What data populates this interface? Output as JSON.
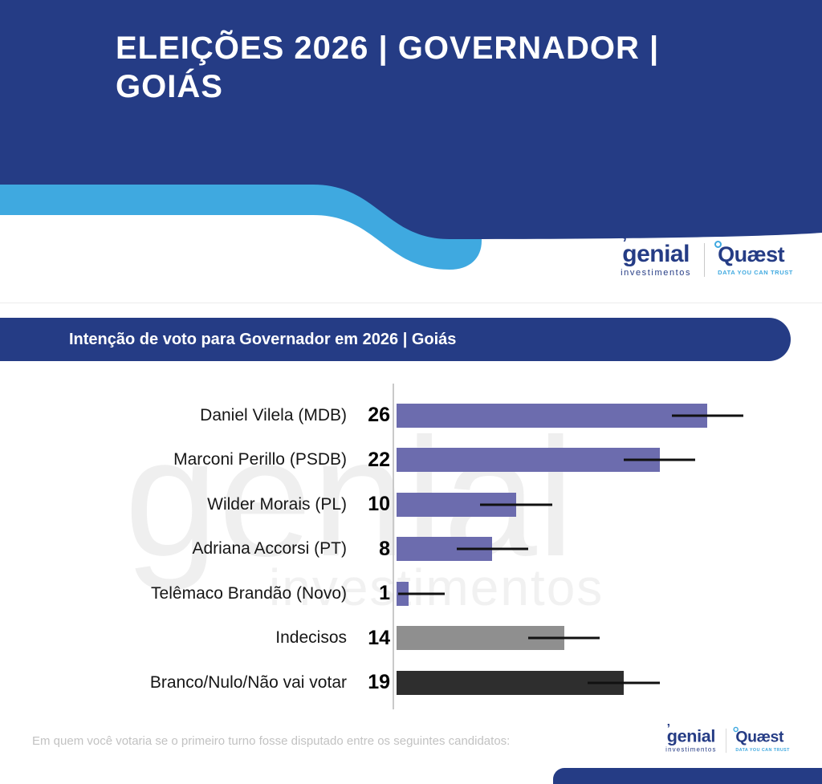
{
  "header": {
    "title": "ELEIÇÕES 2026 | GOVERNADOR | GOIÁS"
  },
  "brand": {
    "genial": "genial",
    "genial_mark": "ʼ",
    "genial_sub": "investimentos",
    "quaest": "Quæst",
    "quaest_tagline": "DATA YOU CAN TRUST"
  },
  "section": {
    "title": "Intenção de voto para Governador em 2026 | Goiás"
  },
  "watermark": {
    "line1": "genial",
    "line2": "investimentos"
  },
  "footer": {
    "question": "Em quem você votaria se o primeiro turno fosse disputado entre os seguintes candidatos:"
  },
  "colors": {
    "navy": "#253C85",
    "light_blue": "#3FA9E0",
    "bar_purple": "#6C6CAE",
    "bar_gray": "#8F8F8F",
    "bar_dark": "#2E2E2E",
    "axis_gray": "#C9C9C9"
  },
  "chart_data": {
    "type": "bar",
    "orientation": "horizontal",
    "title": "Intenção de voto para Governador em 2026 | Goiás",
    "categories": [
      "Daniel Vilela (MDB)",
      "Marconi Perillo (PSDB)",
      "Wilder Morais (PL)",
      "Adriana Accorsi (PT)",
      "Telêmaco Brandão (Novo)",
      "Indecisos",
      "Branco/Nulo/Não vai votar"
    ],
    "values": [
      26,
      22,
      10,
      8,
      1,
      14,
      19
    ],
    "bar_colors": [
      "#6C6CAE",
      "#6C6CAE",
      "#6C6CAE",
      "#6C6CAE",
      "#6C6CAE",
      "#8F8F8F",
      "#2E2E2E"
    ],
    "xlim": [
      0,
      34
    ],
    "error_bar_halfwidth": 3,
    "legend": false,
    "gridlines": false
  }
}
